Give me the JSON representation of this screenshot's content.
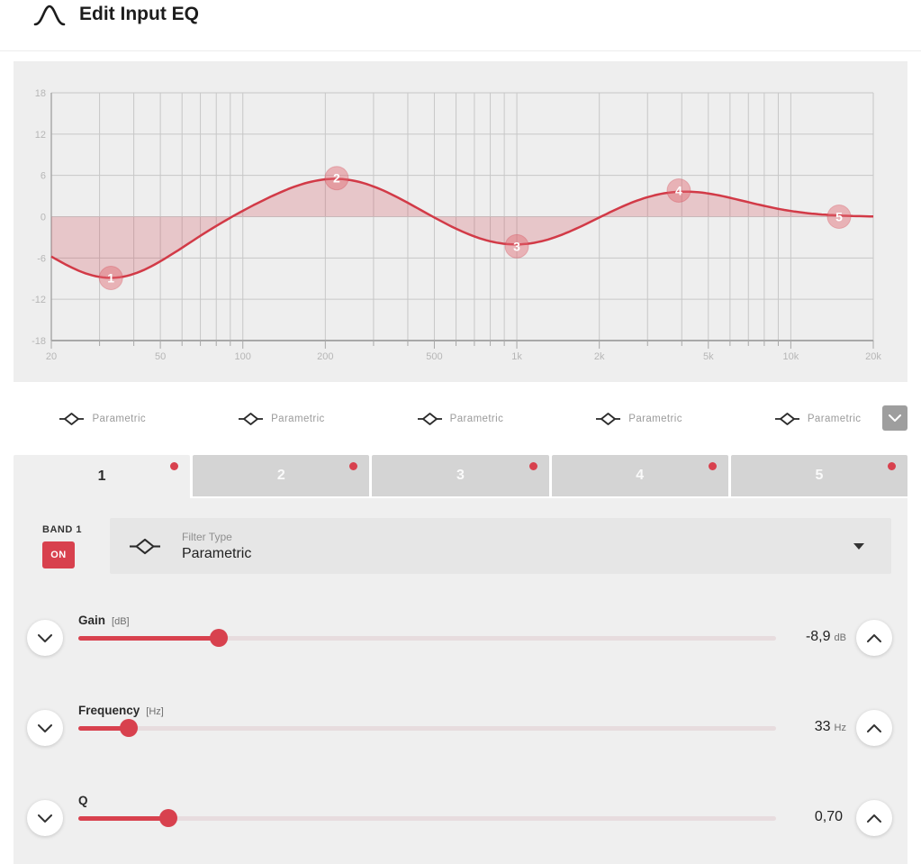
{
  "header": {
    "title": "Edit Input EQ",
    "icon": "bell-curve-icon"
  },
  "eq_graph": {
    "type": "line",
    "x_scale": "log",
    "xlim": [
      20,
      20000
    ],
    "ylim": [
      -18,
      18
    ],
    "x_tick_values": [
      20,
      50,
      100,
      200,
      500,
      1000,
      2000,
      5000,
      10000,
      20000
    ],
    "x_tick_labels": [
      "20",
      "50",
      "100",
      "200",
      "500",
      "1k",
      "2k",
      "5k",
      "10k",
      "20k"
    ],
    "y_tick_values": [
      18,
      12,
      6,
      0,
      -6,
      -12,
      -18
    ],
    "y_tick_labels": [
      "18",
      "12",
      "6",
      "0",
      "-6",
      "-12",
      "-18"
    ],
    "bands": [
      {
        "label": "1",
        "freq_hz": 33,
        "gain_db": -8.9
      },
      {
        "label": "2",
        "freq_hz": 220,
        "gain_db": 5.6
      },
      {
        "label": "3",
        "freq_hz": 1000,
        "gain_db": -4.3
      },
      {
        "label": "4",
        "freq_hz": 3900,
        "gain_db": 3.8
      },
      {
        "label": "5",
        "freq_hz": 15000,
        "gain_db": 0
      }
    ]
  },
  "filter_row": {
    "items": [
      {
        "label": "Parametric"
      },
      {
        "label": "Parametric"
      },
      {
        "label": "Parametric"
      },
      {
        "label": "Parametric"
      },
      {
        "label": "Parametric"
      }
    ],
    "expand_icon": "chevron-down"
  },
  "tabs": [
    {
      "label": "1",
      "active": true,
      "has_dot": true
    },
    {
      "label": "2",
      "active": false,
      "has_dot": true
    },
    {
      "label": "3",
      "active": false,
      "has_dot": true
    },
    {
      "label": "4",
      "active": false,
      "has_dot": true
    },
    {
      "label": "5",
      "active": false,
      "has_dot": true
    }
  ],
  "band_panel": {
    "band_label": "BAND 1",
    "on_label": "ON",
    "filter_type_label": "Filter Type",
    "filter_type_value": "Parametric",
    "sliders": [
      {
        "name": "Gain",
        "unit": "[dB]",
        "value": "-8,9",
        "value_unit": "dB",
        "fraction": 0.201
      },
      {
        "name": "Frequency",
        "unit": "[Hz]",
        "value": "33",
        "value_unit": "Hz",
        "fraction": 0.072
      },
      {
        "name": "Q",
        "unit": "",
        "value": "0,70",
        "value_unit": "",
        "fraction": 0.129
      }
    ]
  },
  "colors": {
    "accent_red": "#d8414e",
    "curve_red": "#d23a47",
    "curve_fill": "rgba(210,58,71,0.22)",
    "marker_fill": "rgba(224,104,114,0.45)",
    "panel_bg": "#efefef",
    "graph_bg": "#eeeeee",
    "inactive_tab_bg": "#d4d4d4",
    "dropdown_bg": "#e6e6e6",
    "track_bg": "#e7dcde",
    "grid_line": "#c7c7c7",
    "axis_line": "#a8a8a8",
    "axis_label": "#b6b6b6",
    "gray_button": "#9e9e9e"
  }
}
